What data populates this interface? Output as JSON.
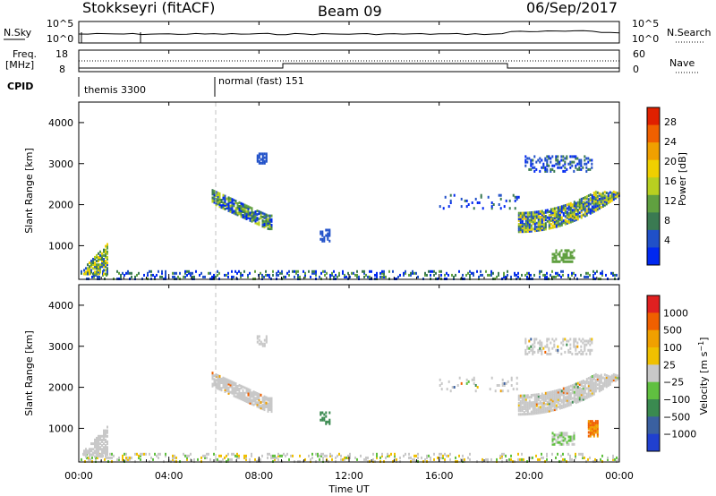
{
  "header": {
    "station": "Stokkseyri (fitACF)",
    "beam": "Beam 09",
    "date": "06/Sep/2017"
  },
  "status_panels": {
    "nsky_label": "N.Sky",
    "nsearch_label": "N.Search",
    "nsky_ticks": [
      "10^5",
      "10^0"
    ],
    "nsearch_ticks": [
      "10^5",
      "10^0"
    ],
    "freq_label_top": "Freq.",
    "freq_label_bottom": "[MHz]",
    "freq_ticks": [
      "18",
      "8"
    ],
    "nave_label": "Nave",
    "nave_ticks": [
      "60",
      "0"
    ],
    "cpid_label": "CPID",
    "cpid_segments": [
      {
        "label": "themis 3300",
        "start_hour": 0
      },
      {
        "label": "normal (fast) 151",
        "start_hour": 6
      }
    ]
  },
  "chart_data": [
    {
      "type": "heatmap",
      "title": "",
      "xlabel": "Time UT",
      "ylabel": "Slant Range [km]",
      "xlim": [
        0,
        24
      ],
      "ylim": [
        180,
        4500
      ],
      "x_ticks": [
        "00:00",
        "04:00",
        "08:00",
        "12:00",
        "16:00",
        "20:00",
        "00:00"
      ],
      "y_ticks": [
        1000,
        2000,
        3000,
        4000
      ],
      "colorbar": {
        "label": "Power [dB]",
        "ticks": [
          4,
          8,
          12,
          16,
          20,
          24,
          28
        ],
        "colors": [
          "#0028f0",
          "#2050c8",
          "#3a7a52",
          "#60a040",
          "#b8d020",
          "#f0d000",
          "#f0a000",
          "#f06000",
          "#e02000"
        ]
      },
      "echo_regions": [
        {
          "t_start": 0.2,
          "t_end": 1.2,
          "r_start": 300,
          "r_end": 1000
        },
        {
          "t_start": 5.9,
          "t_end": 8.5,
          "r_start": 1400,
          "r_end": 2300
        },
        {
          "t_start": 19.5,
          "t_end": 24,
          "r_start": 1300,
          "r_end": 3000
        },
        {
          "t_start": 0,
          "t_end": 24,
          "r_start": 180,
          "r_end": 350
        }
      ]
    },
    {
      "type": "heatmap",
      "title": "",
      "xlabel": "Time UT",
      "ylabel": "Slant Range [km]",
      "xlim": [
        0,
        24
      ],
      "ylim": [
        180,
        4500
      ],
      "x_ticks": [
        "00:00",
        "04:00",
        "08:00",
        "12:00",
        "16:00",
        "20:00",
        "00:00"
      ],
      "y_ticks": [
        1000,
        2000,
        3000,
        4000
      ],
      "colorbar": {
        "label": "Velocity [m s^-1]",
        "ticks": [
          "1000",
          "500",
          "100",
          "25",
          "−25",
          "−100",
          "−500",
          "−1000"
        ],
        "colors": [
          "#2040d0",
          "#3a60a0",
          "#3a8a50",
          "#60c040",
          "#c8c8c8",
          "#f0c000",
          "#f0a000",
          "#f06000",
          "#e02020"
        ]
      },
      "echo_regions": [
        {
          "t_start": 0.2,
          "t_end": 1.2,
          "r_start": 300,
          "r_end": 1000
        },
        {
          "t_start": 5.9,
          "t_end": 8.5,
          "r_start": 1400,
          "r_end": 2300
        },
        {
          "t_start": 19.5,
          "t_end": 24,
          "r_start": 1300,
          "r_end": 3000
        },
        {
          "t_start": 0,
          "t_end": 24,
          "r_start": 180,
          "r_end": 350
        }
      ]
    }
  ],
  "colors": {
    "echo_gray": "#c8c8c8",
    "dashed_line": "#c0c0c0"
  }
}
